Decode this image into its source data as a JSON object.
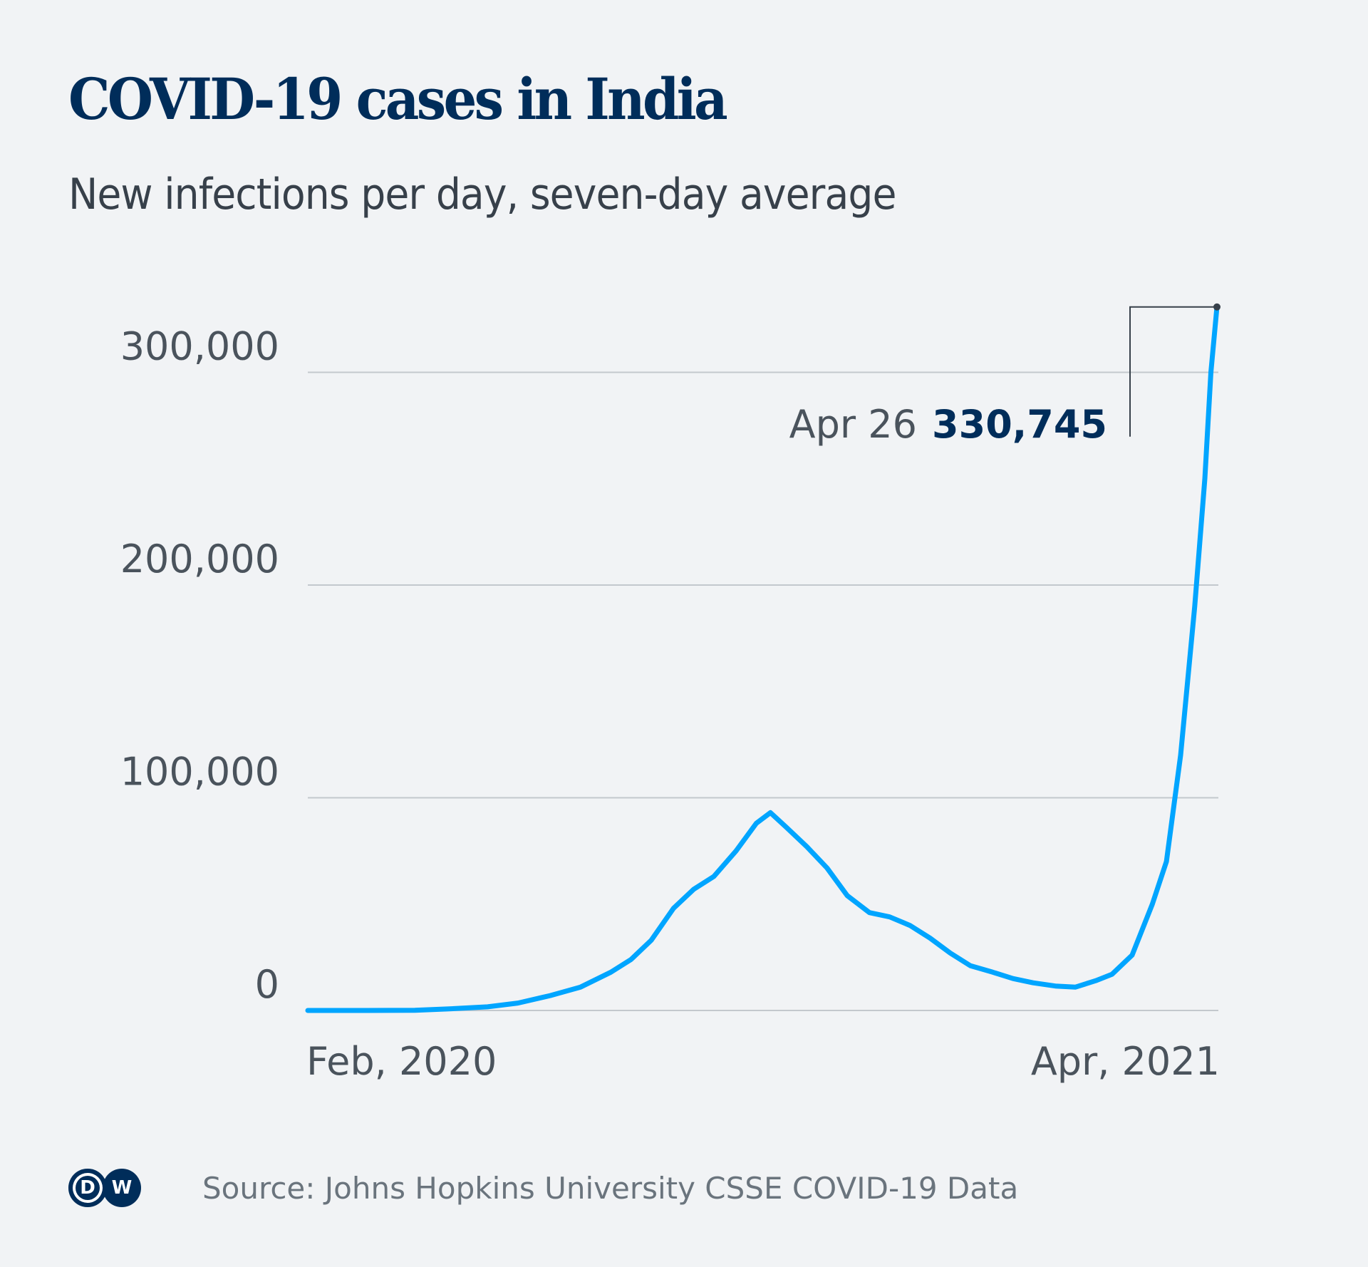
{
  "header": {
    "title": "COVID-19 cases in India",
    "subtitle": "New infections per day, seven-day average"
  },
  "footer": {
    "logo_text_left": "D",
    "logo_text_right": "W",
    "source": "Source: Johns Hopkins University CSSE COVID-19 Data"
  },
  "colors": {
    "background": "#f1f3f5",
    "line": "#00a5ff",
    "title": "#002d5a",
    "grid": "#c3c8cd",
    "text": "#4a535c"
  },
  "chart_data": {
    "type": "line",
    "title": "COVID-19 cases in India",
    "subtitle": "New infections per day, seven-day average",
    "xlabel": "",
    "ylabel": "",
    "x_range": [
      "2020-02-01",
      "2021-04-26"
    ],
    "ylim": [
      0,
      330745
    ],
    "yticks": [
      0,
      100000,
      200000,
      300000
    ],
    "ytick_labels": [
      "0",
      "100,000",
      "200,000",
      "300,000"
    ],
    "xtick_labels": [
      "Feb, 2020",
      "Apr, 2021"
    ],
    "grid": true,
    "legend": "none",
    "annotation": {
      "date_label": "Apr 26",
      "value_label": "330,745",
      "x": "2021-04-26",
      "y": 330745
    },
    "series": [
      {
        "name": "New infections (7-day avg)",
        "points": [
          [
            "2020-02-01",
            0
          ],
          [
            "2020-03-01",
            0
          ],
          [
            "2020-03-25",
            100
          ],
          [
            "2020-04-10",
            700
          ],
          [
            "2020-04-30",
            1700
          ],
          [
            "2020-05-15",
            3500
          ],
          [
            "2020-05-31",
            7000
          ],
          [
            "2020-06-15",
            11000
          ],
          [
            "2020-06-30",
            18000
          ],
          [
            "2020-07-10",
            24000
          ],
          [
            "2020-07-20",
            33000
          ],
          [
            "2020-07-31",
            48000
          ],
          [
            "2020-08-10",
            57000
          ],
          [
            "2020-08-20",
            63000
          ],
          [
            "2020-08-31",
            75000
          ],
          [
            "2020-09-10",
            88000
          ],
          [
            "2020-09-17",
            93000
          ],
          [
            "2020-09-25",
            86000
          ],
          [
            "2020-10-05",
            77000
          ],
          [
            "2020-10-15",
            67000
          ],
          [
            "2020-10-25",
            54000
          ],
          [
            "2020-11-05",
            46000
          ],
          [
            "2020-11-15",
            44000
          ],
          [
            "2020-11-25",
            40000
          ],
          [
            "2020-12-05",
            34000
          ],
          [
            "2020-12-15",
            27000
          ],
          [
            "2020-12-25",
            21000
          ],
          [
            "2021-01-05",
            18000
          ],
          [
            "2021-01-15",
            15000
          ],
          [
            "2021-01-25",
            13000
          ],
          [
            "2021-02-05",
            11500
          ],
          [
            "2021-02-15",
            11000
          ],
          [
            "2021-02-25",
            14000
          ],
          [
            "2021-03-05",
            17000
          ],
          [
            "2021-03-15",
            26000
          ],
          [
            "2021-03-25",
            50000
          ],
          [
            "2021-04-01",
            70000
          ],
          [
            "2021-04-08",
            120000
          ],
          [
            "2021-04-15",
            190000
          ],
          [
            "2021-04-20",
            250000
          ],
          [
            "2021-04-23",
            300000
          ],
          [
            "2021-04-26",
            330745
          ]
        ]
      }
    ]
  }
}
